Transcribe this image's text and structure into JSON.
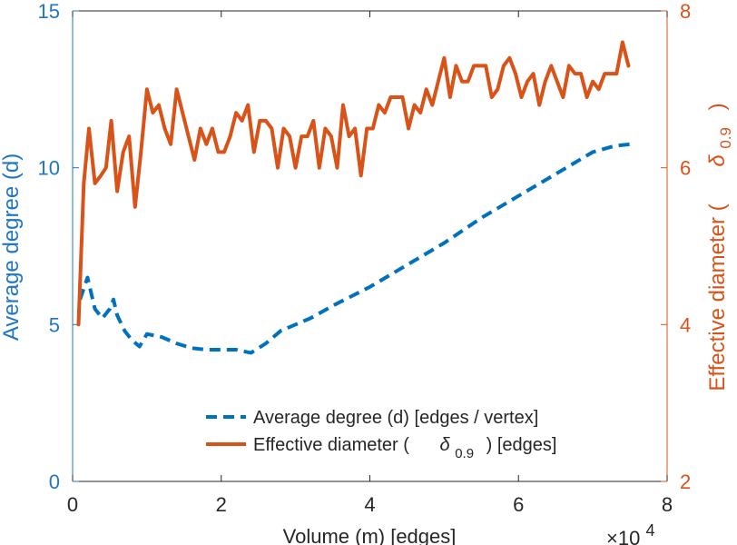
{
  "chart_data": {
    "type": "line",
    "title": "",
    "xlabel": "Volume (m) [edges]",
    "x_multiplier": "×10",
    "x_multiplier_exp": "4",
    "xlim": [
      0,
      8
    ],
    "xticks": [
      0,
      2,
      4,
      6,
      8
    ],
    "xtick_labels": [
      "0",
      "2",
      "4",
      "6",
      "8"
    ],
    "left_axis": {
      "label": "Average degree (d)",
      "ylim": [
        0,
        15
      ],
      "ticks": [
        0,
        5,
        10,
        15
      ],
      "tick_labels": [
        "0",
        "5",
        "10",
        "15"
      ],
      "color": "#1f77c4"
    },
    "right_axis": {
      "label_main": "Effective diameter (",
      "label_symbol": "δ",
      "label_sub": "0.9",
      "label_close": ")",
      "ylim": [
        2,
        8
      ],
      "ticks": [
        2,
        4,
        6,
        8
      ],
      "tick_labels": [
        "2",
        "4",
        "6",
        "8"
      ],
      "color": "#d95319"
    },
    "legend": {
      "placement": "bottom-right",
      "entries": [
        {
          "label": "Average degree (d) [edges / vertex]",
          "style": "dashed",
          "color": "#0072bd"
        },
        {
          "label_main": "Effective diameter (",
          "label_symbol": "δ",
          "label_sub": "0.9",
          "label_close": ") [edges]",
          "style": "solid",
          "color": "#d95319"
        }
      ]
    },
    "series": [
      {
        "name": "Average degree (d) [edges / vertex]",
        "axis": "left",
        "color": "#0072bd",
        "style": "dashed",
        "x": [
          0.1,
          0.2,
          0.3,
          0.4,
          0.5,
          0.55,
          0.6,
          0.7,
          0.8,
          0.9,
          1.0,
          1.2,
          1.4,
          1.6,
          1.8,
          2.0,
          2.2,
          2.4,
          2.6,
          2.8,
          3.0,
          3.2,
          3.5,
          4.0,
          4.5,
          5.0,
          5.5,
          6.0,
          6.5,
          7.0,
          7.3,
          7.5
        ],
        "y": [
          5.8,
          6.5,
          5.5,
          5.2,
          5.5,
          5.8,
          5.3,
          4.8,
          4.5,
          4.3,
          4.7,
          4.6,
          4.4,
          4.25,
          4.2,
          4.2,
          4.2,
          4.1,
          4.4,
          4.8,
          5.0,
          5.2,
          5.6,
          6.2,
          6.9,
          7.6,
          8.4,
          9.1,
          9.8,
          10.5,
          10.7,
          10.75
        ]
      },
      {
        "name": "Effective diameter (δ0.9) [edges]",
        "axis": "right",
        "color": "#d95319",
        "style": "solid",
        "x": [
          0.08,
          0.15,
          0.22,
          0.3,
          0.38,
          0.45,
          0.52,
          0.6,
          0.68,
          0.76,
          0.84,
          0.92,
          1.0,
          1.08,
          1.16,
          1.24,
          1.32,
          1.4,
          1.48,
          1.56,
          1.64,
          1.72,
          1.8,
          1.88,
          1.96,
          2.04,
          2.12,
          2.2,
          2.28,
          2.36,
          2.44,
          2.52,
          2.6,
          2.68,
          2.76,
          2.84,
          2.92,
          3.0,
          3.08,
          3.16,
          3.24,
          3.32,
          3.4,
          3.48,
          3.56,
          3.64,
          3.72,
          3.8,
          3.88,
          3.96,
          4.04,
          4.12,
          4.2,
          4.28,
          4.36,
          4.44,
          4.52,
          4.6,
          4.68,
          4.76,
          4.84,
          4.92,
          5.0,
          5.08,
          5.16,
          5.24,
          5.32,
          5.4,
          5.48,
          5.56,
          5.64,
          5.72,
          5.8,
          5.88,
          5.96,
          6.04,
          6.12,
          6.2,
          6.28,
          6.36,
          6.44,
          6.52,
          6.6,
          6.68,
          6.76,
          6.84,
          6.92,
          7.0,
          7.08,
          7.16,
          7.24,
          7.32,
          7.4,
          7.48
        ],
        "y": [
          4.0,
          5.8,
          6.5,
          5.8,
          5.9,
          6.0,
          6.6,
          5.7,
          6.2,
          6.4,
          5.5,
          6.2,
          7.0,
          6.7,
          6.8,
          6.5,
          6.3,
          7.0,
          6.7,
          6.4,
          6.1,
          6.5,
          6.3,
          6.5,
          6.2,
          6.2,
          6.4,
          6.7,
          6.6,
          6.8,
          6.2,
          6.6,
          6.6,
          6.5,
          6.0,
          6.5,
          6.4,
          6.0,
          6.4,
          6.4,
          6.6,
          6.0,
          6.5,
          6.4,
          6.0,
          6.8,
          6.4,
          6.5,
          5.9,
          6.5,
          6.5,
          6.8,
          6.7,
          6.9,
          6.9,
          6.9,
          6.5,
          6.8,
          6.7,
          7.0,
          6.8,
          7.1,
          7.4,
          6.9,
          7.3,
          7.1,
          7.1,
          7.3,
          7.3,
          7.3,
          6.9,
          7.0,
          7.3,
          7.4,
          7.2,
          6.9,
          7.1,
          7.2,
          6.8,
          7.1,
          7.3,
          7.1,
          6.9,
          7.3,
          7.2,
          7.2,
          6.9,
          7.1,
          7.0,
          7.2,
          7.2,
          7.2,
          7.6,
          7.3
        ]
      }
    ]
  }
}
